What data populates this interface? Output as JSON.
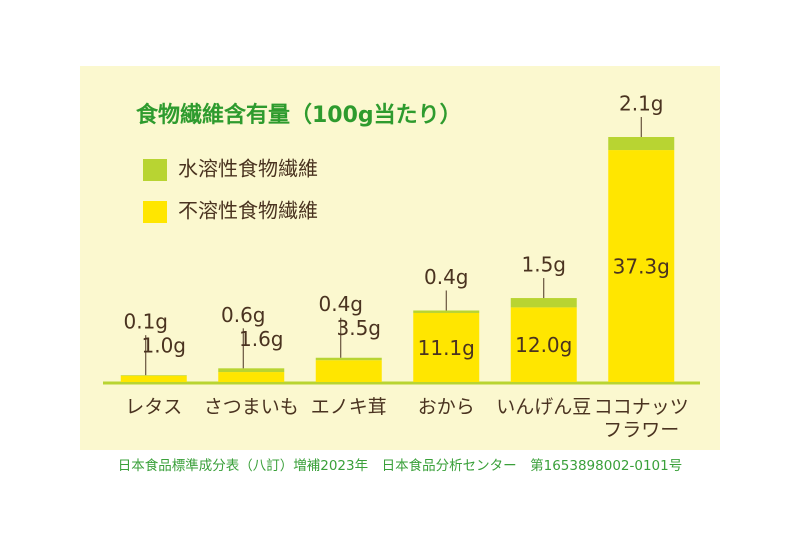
{
  "chart_data": {
    "type": "stacked-bar",
    "title": "食物繊維含有量（100g当たり）",
    "categories": [
      "レタス",
      "さつまいも",
      "エノキ茸",
      "おから",
      "いんげん豆",
      "ココナッツ\nフラワー"
    ],
    "series": [
      {
        "name": "不溶性食物繊維",
        "color": "#ffe600",
        "values": [
          1.0,
          1.6,
          3.5,
          11.1,
          12.0,
          37.3
        ],
        "value_labels": [
          "1.0g",
          "1.6g",
          "3.5g",
          "11.1g",
          "12.0g",
          "37.3g"
        ]
      },
      {
        "name": "水溶性食物繊維",
        "color": "#b8d432",
        "values": [
          0.1,
          0.6,
          0.4,
          0.4,
          1.5,
          2.1
        ],
        "value_labels": [
          "0.1g",
          "0.6g",
          "0.4g",
          "0.4g",
          "1.5g",
          "2.1g"
        ]
      }
    ],
    "source": "日本食品標準成分表（八訂）増補2023年　日本食品分析センター　第1653898002-0101号"
  }
}
